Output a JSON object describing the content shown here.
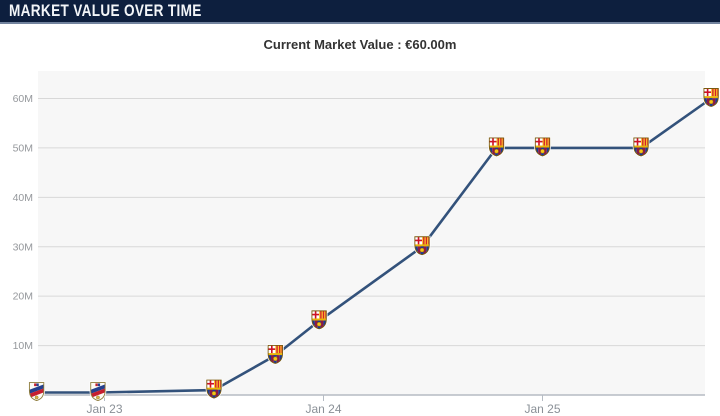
{
  "header": {
    "title": "MARKET VALUE OVER TIME"
  },
  "subtitle": "Current Market Value : €60.00m",
  "colors": {
    "header_bg": "#0d1f3e",
    "header_border": "#72839e",
    "line": "#33527b",
    "plot_bg": "#f7f7f7",
    "grid": "#d8d8d8",
    "axis": "#b6bcc4",
    "barcelona_blue": "#1a3c8f",
    "barcelona_garnet": "#8c1b44",
    "barcelona_gold": "#f0b90b",
    "huesca_blue": "#24408e",
    "huesca_red": "#c51f30"
  },
  "chart_data": {
    "type": "line",
    "title": "Current Market Value : €60.00m",
    "xlabel": "",
    "ylabel": "",
    "ylim": [
      0,
      65
    ],
    "grid": "horizontal",
    "legend": "none",
    "y_ticks": [
      {
        "label": "10M",
        "value": 10
      },
      {
        "label": "20M",
        "value": 20
      },
      {
        "label": "30M",
        "value": 30
      },
      {
        "label": "40M",
        "value": 40
      },
      {
        "label": "50M",
        "value": 50
      },
      {
        "label": "60M",
        "value": 60
      }
    ],
    "x_ticks": [
      {
        "label": "Jan 23",
        "years_from_jan23": 0
      },
      {
        "label": "Jan 24",
        "years_from_jan23": 1
      },
      {
        "label": "Jan 25",
        "years_from_jan23": 2
      }
    ],
    "series": [
      {
        "name": "market-value-eur-millions",
        "points": [
          {
            "years_from_jan23": -0.31,
            "value_m": 0.5,
            "club": "huesca"
          },
          {
            "years_from_jan23": -0.03,
            "value_m": 0.5,
            "club": "huesca"
          },
          {
            "years_from_jan23": 0.5,
            "value_m": 1.0,
            "club": "barcelona"
          },
          {
            "years_from_jan23": 0.78,
            "value_m": 8.0,
            "club": "barcelona"
          },
          {
            "years_from_jan23": 0.98,
            "value_m": 15.0,
            "club": "barcelona"
          },
          {
            "years_from_jan23": 1.45,
            "value_m": 30.0,
            "club": "barcelona"
          },
          {
            "years_from_jan23": 1.79,
            "value_m": 50.0,
            "club": "barcelona"
          },
          {
            "years_from_jan23": 2.0,
            "value_m": 50.0,
            "club": "barcelona"
          },
          {
            "years_from_jan23": 2.45,
            "value_m": 50.0,
            "club": "barcelona"
          },
          {
            "years_from_jan23": 2.77,
            "value_m": 60.0,
            "club": "barcelona"
          }
        ]
      }
    ]
  }
}
